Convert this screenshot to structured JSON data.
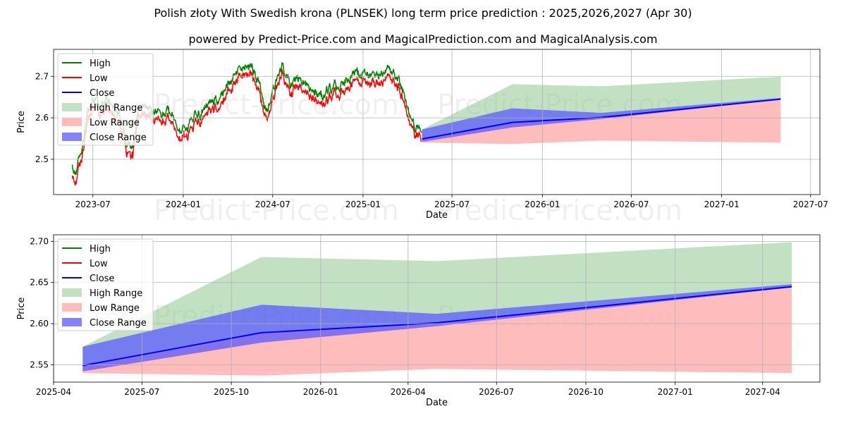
{
  "titles": {
    "main": "Polish złoty With Swedish krona (PLNSEK) long term price prediction : 2025,2026,2027 (Apr 30)",
    "sub": "powered by Predict-Price.com and MagicalPrediction.com and MagicalAnalysis.com"
  },
  "watermark": "Predict-Price.com",
  "colors": {
    "high": "#008000",
    "low": "#ff0000",
    "close": "#0000ff",
    "high_range": "#8fc88f",
    "low_range": "#ffb0b0",
    "close_range": "#5a5aff"
  },
  "chart_data": [
    {
      "type": "line",
      "xlabel": "Date",
      "ylabel": "Price",
      "ylim": [
        2.415,
        2.765
      ],
      "xlim": [
        "2023-04-12",
        "2027-07-20"
      ],
      "x_ticks": [
        "2023-07",
        "2024-01",
        "2024-07",
        "2025-01",
        "2025-07",
        "2026-01",
        "2026-07",
        "2027-01",
        "2027-07"
      ],
      "y_ticks": [
        2.5,
        2.6,
        2.7
      ],
      "grid": true,
      "legend_position": "top-left",
      "legend": [
        "High",
        "Low",
        "Close",
        "High Range",
        "Low Range",
        "Close Range"
      ],
      "history_anchors": {
        "dates": [
          "2023-05-20",
          "2023-05-26",
          "2023-06-02",
          "2023-06-10",
          "2023-06-20",
          "2023-07-01",
          "2023-07-15",
          "2023-08-01",
          "2023-08-15",
          "2023-09-01",
          "2023-09-10",
          "2023-09-20",
          "2023-10-01",
          "2023-10-20",
          "2023-11-10",
          "2023-12-01",
          "2023-12-25",
          "2024-01-10",
          "2024-02-01",
          "2024-02-20",
          "2024-03-15",
          "2024-04-05",
          "2024-04-25",
          "2024-05-15",
          "2024-06-01",
          "2024-06-20",
          "2024-07-05",
          "2024-07-20",
          "2024-08-05",
          "2024-08-25",
          "2024-09-15",
          "2024-10-05",
          "2024-10-25",
          "2024-11-15",
          "2024-12-05",
          "2024-12-25",
          "2025-01-15",
          "2025-02-05",
          "2025-02-25",
          "2025-03-15",
          "2025-04-01",
          "2025-04-15",
          "2025-04-30"
        ],
        "close": [
          2.47,
          2.45,
          2.49,
          2.52,
          2.6,
          2.64,
          2.62,
          2.64,
          2.61,
          2.58,
          2.52,
          2.52,
          2.61,
          2.62,
          2.6,
          2.61,
          2.56,
          2.57,
          2.6,
          2.62,
          2.64,
          2.68,
          2.71,
          2.72,
          2.68,
          2.6,
          2.67,
          2.72,
          2.67,
          2.69,
          2.66,
          2.64,
          2.66,
          2.67,
          2.69,
          2.7,
          2.69,
          2.7,
          2.71,
          2.68,
          2.62,
          2.57,
          2.57
        ],
        "spread": 0.022
      },
      "forecast": {
        "x": [
          "2025-05-01",
          "2025-11-01",
          "2026-05-01",
          "2027-05-01"
        ],
        "close": [
          2.549,
          2.589,
          2.601,
          2.645
        ],
        "high_range_upper": [
          2.572,
          2.681,
          2.676,
          2.699
        ],
        "low_range_lower": [
          2.54,
          2.537,
          2.545,
          2.54
        ],
        "close_range_upper": [
          2.572,
          2.623,
          2.612,
          2.648
        ],
        "close_range_lower": [
          2.542,
          2.577,
          2.597,
          2.644
        ]
      }
    },
    {
      "type": "line",
      "xlabel": "Date",
      "ylabel": "Price",
      "ylim": [
        2.529,
        2.708
      ],
      "xlim": [
        "2025-04-01",
        "2027-05-30"
      ],
      "x_ticks": [
        "2025-04",
        "2025-07",
        "2025-10",
        "2026-01",
        "2026-04",
        "2026-07",
        "2026-10",
        "2027-01",
        "2027-04"
      ],
      "y_ticks": [
        2.55,
        2.6,
        2.65,
        2.7
      ],
      "y_tick_labels": [
        "2.55",
        "2.60",
        "2.65",
        "2.70"
      ],
      "grid": true,
      "legend_position": "top-left",
      "legend": [
        "High",
        "Low",
        "Close",
        "High Range",
        "Low Range",
        "Close Range"
      ]
    }
  ]
}
